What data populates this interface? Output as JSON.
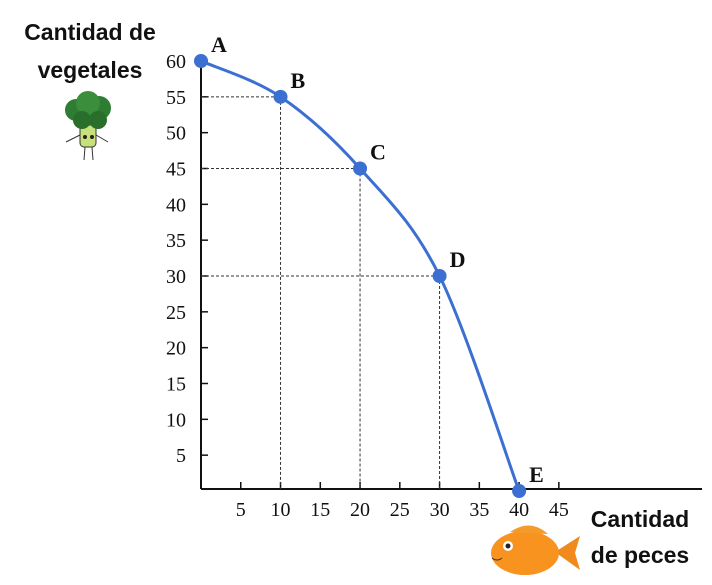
{
  "chart_data": {
    "type": "line",
    "y_label": [
      "Cantidad de",
      "vegetales"
    ],
    "x_label": [
      "Cantidad",
      "de peces"
    ],
    "x": [
      0,
      10,
      20,
      30,
      40
    ],
    "values": [
      60,
      55,
      45,
      30,
      0
    ],
    "point_labels": [
      "A",
      "B",
      "C",
      "D",
      "E"
    ],
    "color": "#3b6fd1",
    "xlim": [
      0,
      63
    ],
    "ylim": [
      0,
      60
    ],
    "xticks": [
      5,
      10,
      15,
      20,
      25,
      30,
      35,
      40,
      45
    ],
    "yticks": [
      5,
      10,
      15,
      20,
      25,
      30,
      35,
      40,
      45,
      50,
      55,
      60
    ],
    "guides": true
  }
}
